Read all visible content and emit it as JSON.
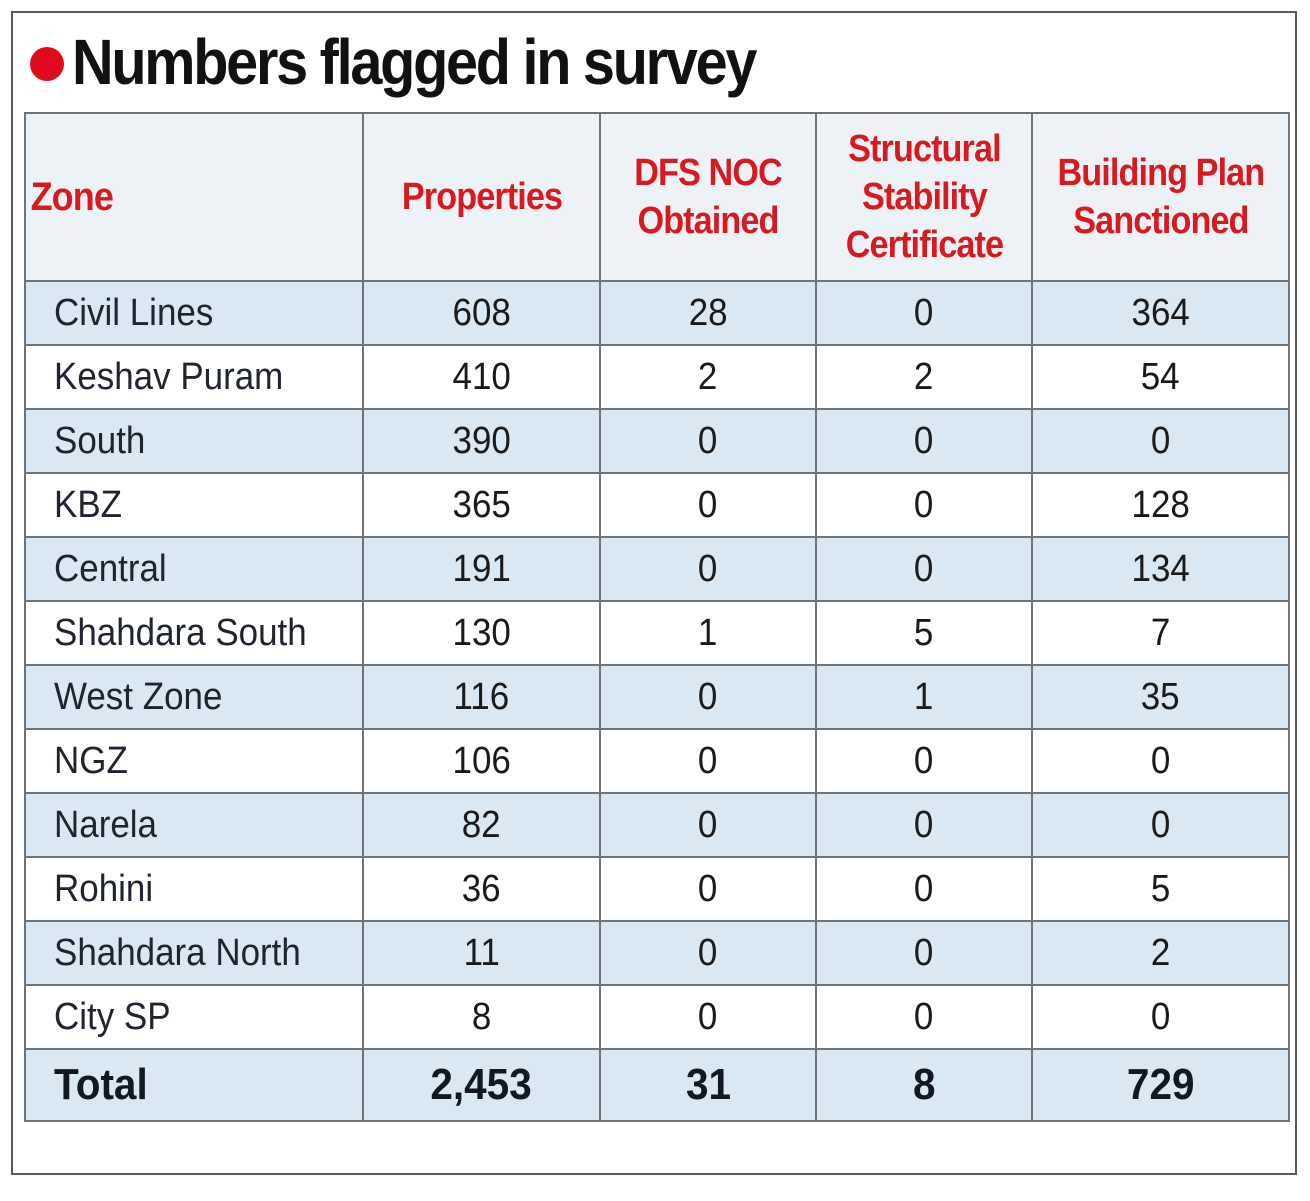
{
  "title": "Numbers flagged in survey",
  "colors": {
    "accent_red": "#e00a1c",
    "header_text": "#d71a20",
    "row_shade": "#d9e8f2",
    "header_bg": "#edf2f7",
    "border": "#6f7478"
  },
  "chart_data": {
    "type": "table",
    "title": "Numbers flagged in survey",
    "columns": [
      "Zone",
      "Properties",
      "DFS NOC\nObtained",
      "Structural\nStability\nCertificate",
      "Building Plan\nSanctioned"
    ],
    "rows": [
      [
        "Civil Lines",
        "608",
        "28",
        "0",
        "364"
      ],
      [
        "Keshav Puram",
        "410",
        "2",
        "2",
        "54"
      ],
      [
        "South",
        "390",
        "0",
        "0",
        "0"
      ],
      [
        "KBZ",
        "365",
        "0",
        "0",
        "128"
      ],
      [
        "Central",
        "191",
        "0",
        "0",
        "134"
      ],
      [
        "Shahdara South",
        "130",
        "1",
        "5",
        "7"
      ],
      [
        "West Zone",
        "116",
        "0",
        "1",
        "35"
      ],
      [
        "NGZ",
        "106",
        "0",
        "0",
        "0"
      ],
      [
        "Narela",
        "82",
        "0",
        "0",
        "0"
      ],
      [
        "Rohini",
        "36",
        "0",
        "0",
        "5"
      ],
      [
        "Shahdara North",
        "11",
        "0",
        "0",
        "2"
      ],
      [
        "City SP",
        "8",
        "0",
        "0",
        "0"
      ]
    ],
    "total": [
      "Total",
      "2,453",
      "31",
      "8",
      "729"
    ]
  }
}
